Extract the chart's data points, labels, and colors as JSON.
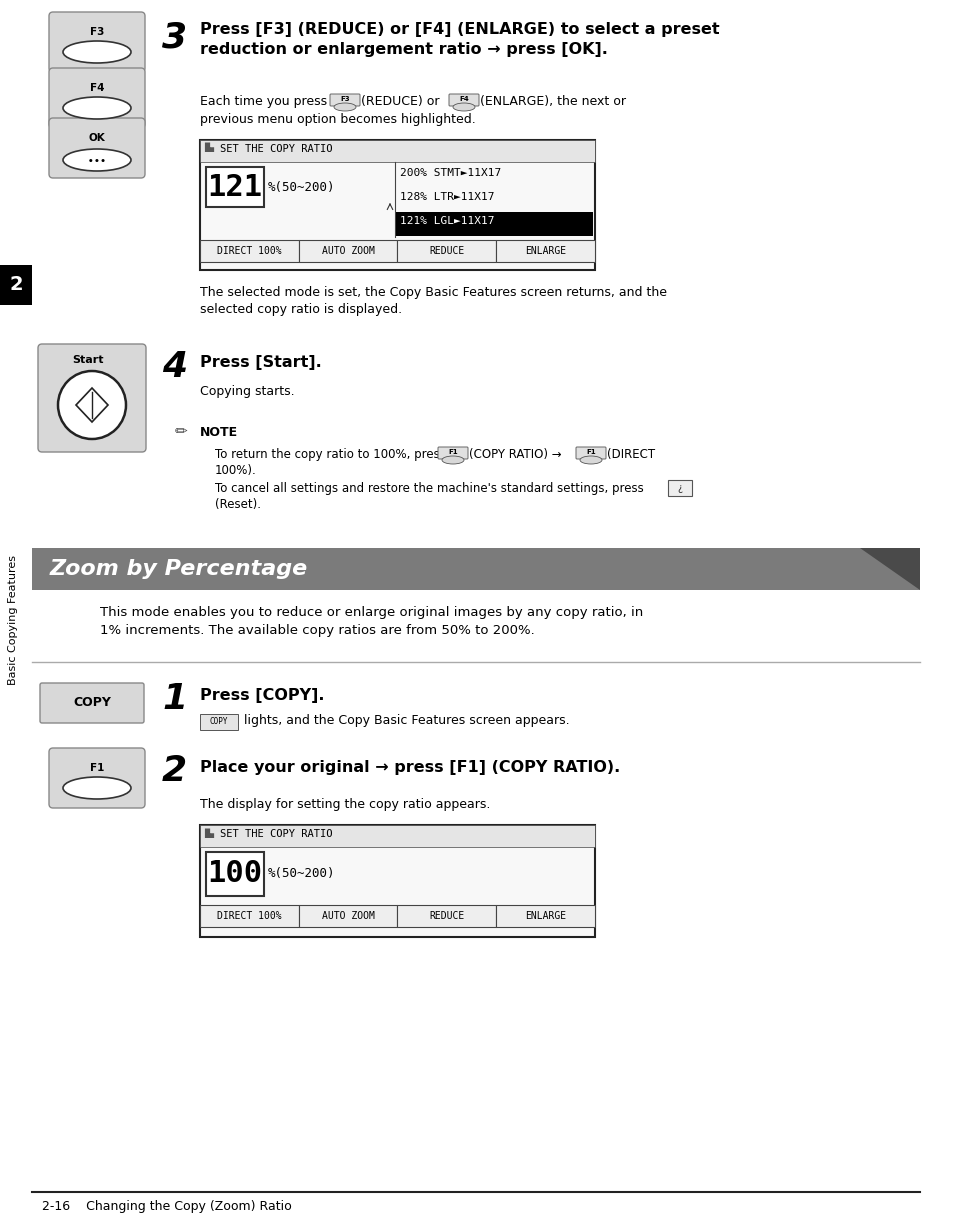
{
  "page_bg": "#ffffff",
  "sidebar_bg": "#000000",
  "sidebar_number": "2",
  "sidebar_label": "Basic Copying Features",
  "footer_text": "2-16    Changing the Copy (Zoom) Ratio",
  "section_header": "Zoom by Percentage",
  "section_header_bg": "#7b7b7b",
  "step3_bold": "Press [F3] (REDUCE) or [F4] (ENLARGE) to select a preset\nreduction or enlargement ratio → press [OK].",
  "step3_body": "Each time you press        (REDUCE) or        (ENLARGE), the next or\nprevious menu option becomes highlighted.",
  "step3_after": "The selected mode is set, the Copy Basic Features screen returns, and the\nselected copy ratio is displayed.",
  "step4_bold": "Press [Start].",
  "step4_body": "Copying starts.",
  "note_line1": "To return the copy ratio to 100%, press        (COPY RATIO) →        (DIRECT\n100%).",
  "note_line2": "To cancel all settings and restore the machine's standard settings, press       \n(Reset).",
  "zoom_intro": "This mode enables you to reduce or enlarge original images by any copy ratio, in\n1% increments. The available copy ratios are from 50% to 200%.",
  "step1_bold": "Press [COPY].",
  "step1_body": "     lights, and the Copy Basic Features screen appears.",
  "step2_bold": "Place your original → press [F1] (COPY RATIO).",
  "step2_body": "The display for setting the copy ratio appears.",
  "screen1_title": "SET THE COPY RATIO",
  "screen1_value": "121",
  "screen1_range": "%(50~200)",
  "screen1_list": [
    "200% STMT►11X17",
    "128% LTR►11X17",
    "121% LGL►11X17"
  ],
  "screen1_selected": 2,
  "screen1_buttons": [
    "DIRECT 100%",
    "AUTO ZOOM",
    "REDUCE",
    "ENLARGE"
  ],
  "screen2_title": "SET THE COPY RATIO",
  "screen2_value": "100",
  "screen2_range": "%(50~200)",
  "screen2_buttons": [
    "DIRECT 100%",
    "AUTO ZOOM",
    "REDUCE",
    "ENLARGE"
  ]
}
